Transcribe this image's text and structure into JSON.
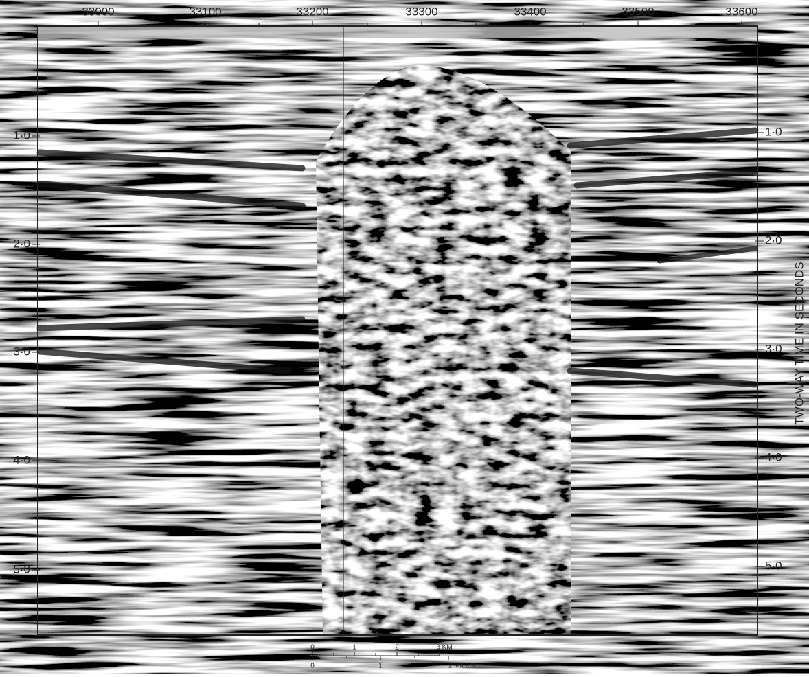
{
  "top_axis": {
    "labels": [
      "33000",
      "33100",
      "33200",
      "33300",
      "33400",
      "33500",
      "33600"
    ]
  },
  "left_axis": {
    "labels": [
      "1·0",
      "2·0",
      "3·0",
      "4·0",
      "5·0"
    ]
  },
  "right_axis": {
    "labels": [
      "1·0",
      "2·0",
      "3·0",
      "4·0",
      "5·0"
    ],
    "title": "TWO-WAY TIME IN SECONDS"
  },
  "scale_bar": {
    "km_labels": [
      "0",
      "1",
      "2",
      "3 KM"
    ],
    "mile_labels": [
      "0",
      "1",
      "2 MILES"
    ]
  }
}
